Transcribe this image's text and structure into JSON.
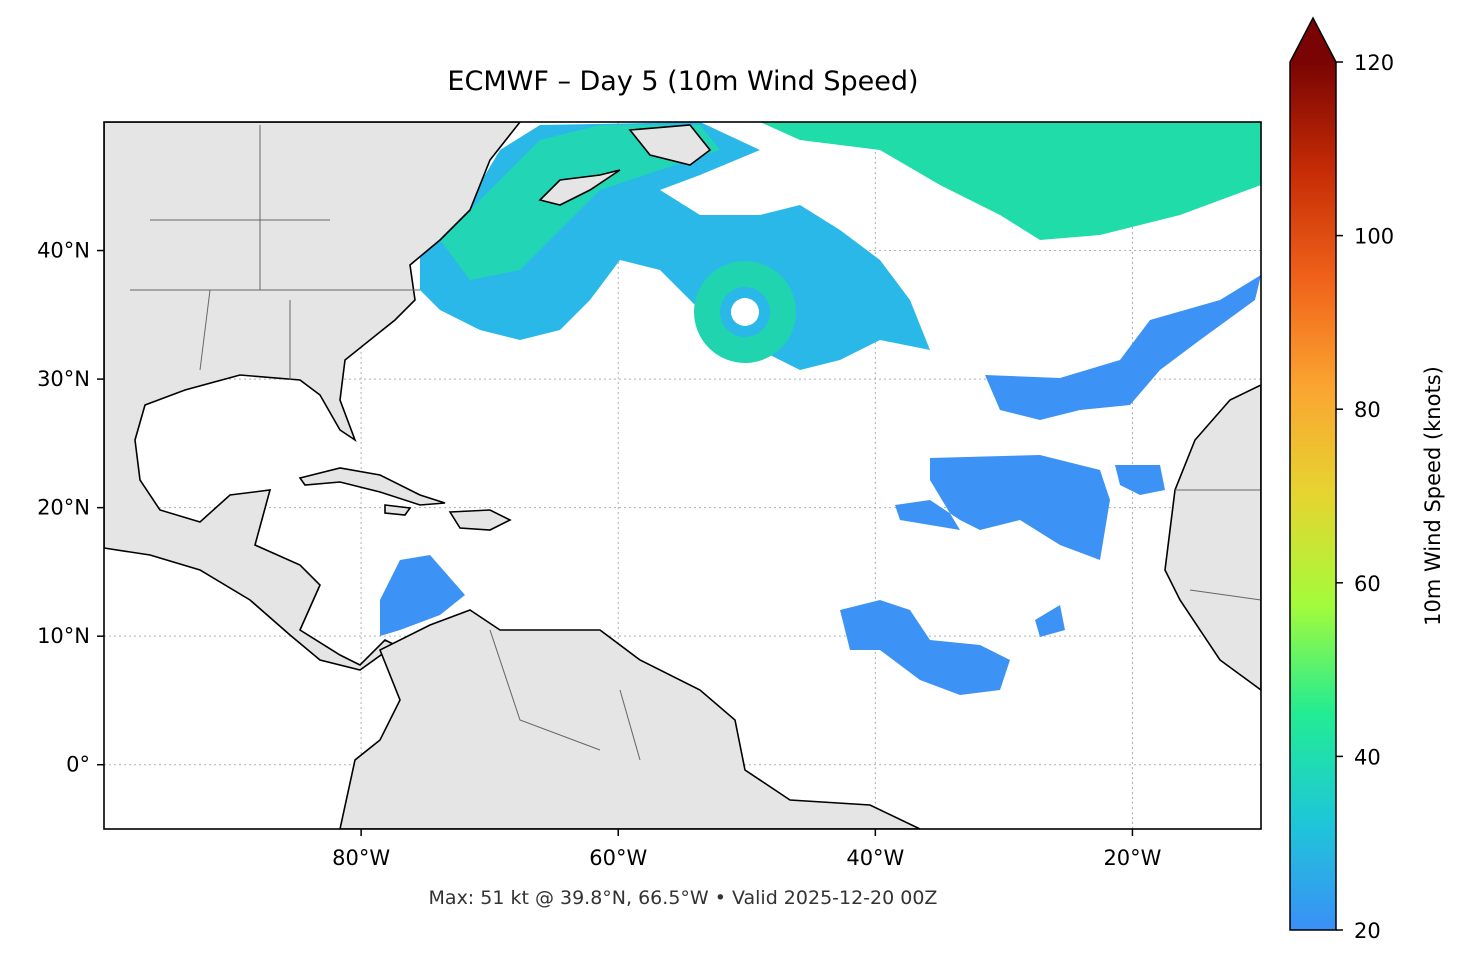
{
  "title": "ECMWF – Day 5 (10m Wind Speed)",
  "footer": "Max: 51 kt @ 39.8°N, 66.5°W • Valid 2025-12-20 00Z",
  "map": {
    "xlim": [
      -100,
      -10
    ],
    "ylim": [
      -5,
      50
    ],
    "xticks": [
      {
        "value": -80,
        "label": "80°W"
      },
      {
        "value": -60,
        "label": "60°W"
      },
      {
        "value": -40,
        "label": "40°W"
      },
      {
        "value": -20,
        "label": "20°W"
      }
    ],
    "yticks": [
      {
        "value": 0,
        "label": "0°"
      },
      {
        "value": 10,
        "label": "10°N"
      },
      {
        "value": 20,
        "label": "20°N"
      },
      {
        "value": 30,
        "label": "30°N"
      },
      {
        "value": 40,
        "label": "40°N"
      }
    ],
    "grid": true
  },
  "colorbar": {
    "label": "10m Wind Speed (knots)",
    "range": [
      20,
      120
    ],
    "ticks": [
      20,
      40,
      60,
      80,
      100,
      120
    ],
    "colormap": [
      "#3b8ff7",
      "#1ec7d8",
      "#22ec93",
      "#a4fb3a",
      "#e5d530",
      "#fba531",
      "#f0621a",
      "#c52c05",
      "#7a0403"
    ],
    "extend": "max"
  }
}
